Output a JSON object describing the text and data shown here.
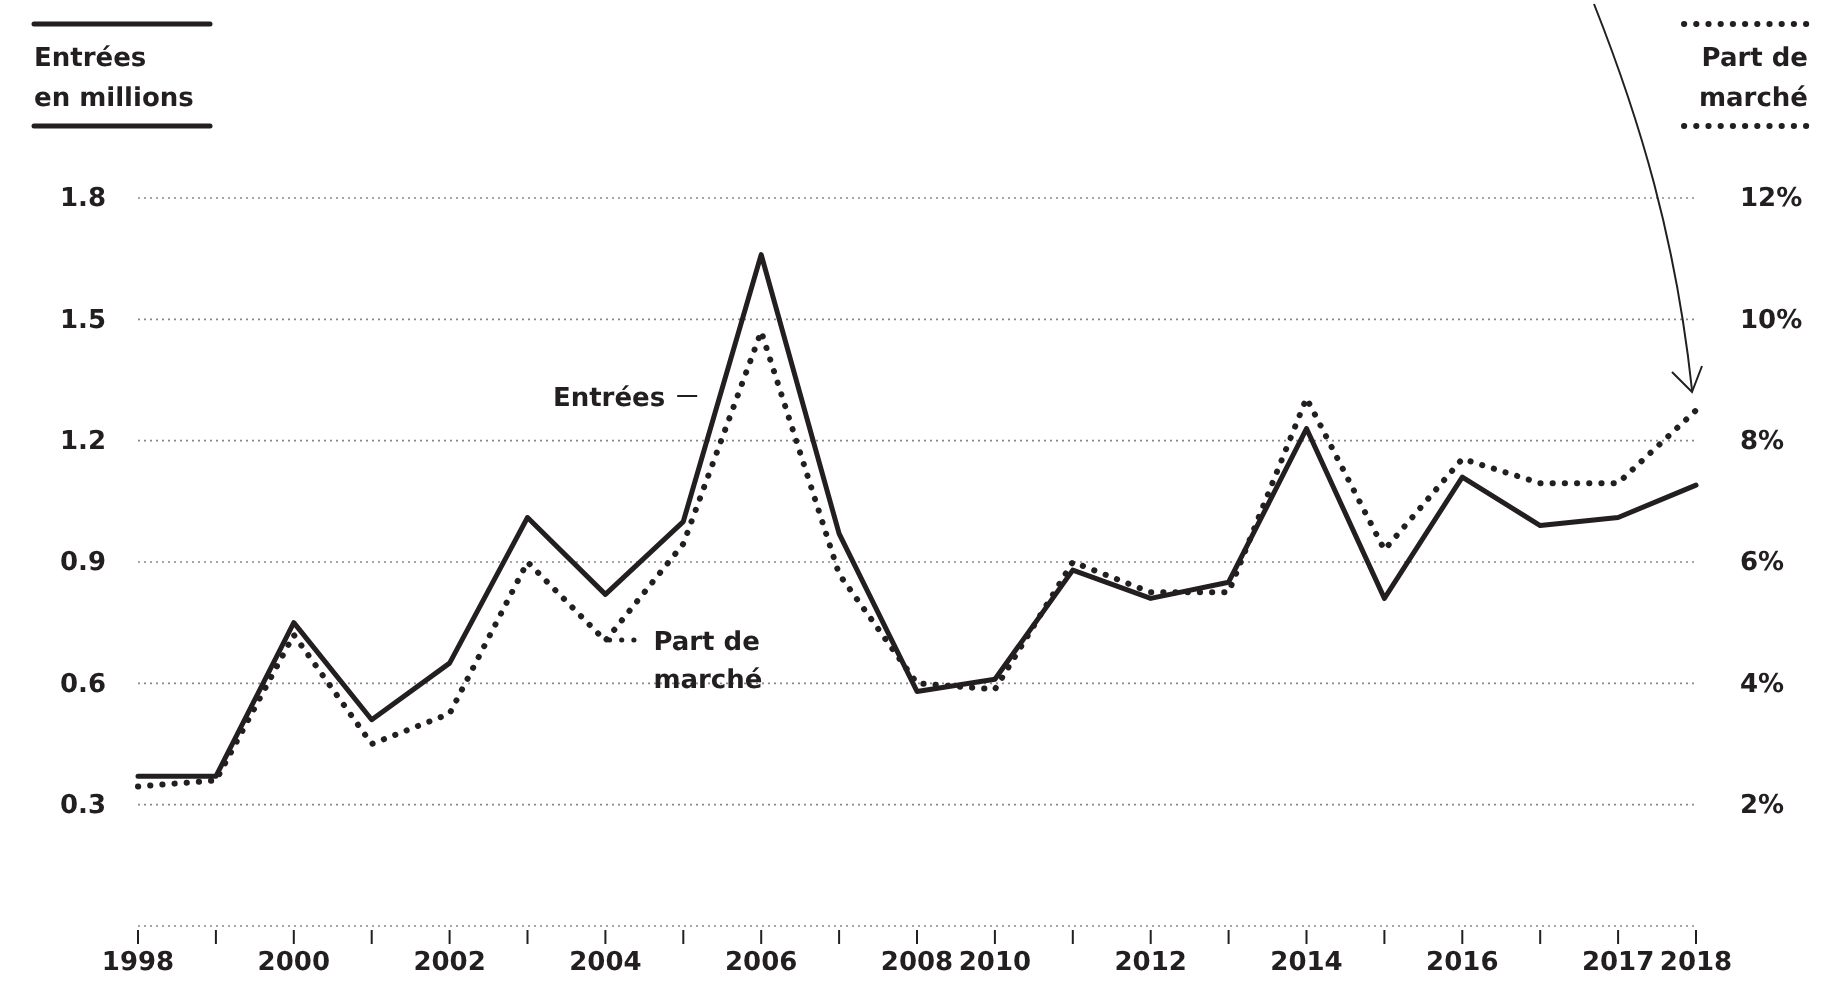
{
  "chart_data": {
    "type": "line",
    "ylabel": "Entrées en millions",
    "y2label": "Part de marché",
    "categories": [
      "1998",
      null,
      "2000",
      null,
      "2002",
      null,
      "2004",
      null,
      "2006",
      null,
      "2008",
      "2010",
      null,
      "2012",
      null,
      "2014",
      null,
      "2016",
      null,
      "2017",
      "2018"
    ],
    "ylim": [
      0,
      1.8
    ],
    "yticks": [
      {
        "value": 0,
        "label": null
      },
      0.3,
      0.6,
      0.9,
      1.2,
      1.5,
      1.8
    ],
    "y2lim": [
      0,
      12
    ],
    "y2ticks": [
      {
        "value": 0,
        "label": null
      },
      {
        "value": 2,
        "label": "2%"
      },
      {
        "value": 4,
        "label": "4%"
      },
      {
        "value": 6,
        "label": "6%"
      },
      {
        "value": 8,
        "label": "8%"
      },
      {
        "value": 10,
        "label": "10%"
      },
      {
        "value": 12,
        "label": "12%"
      }
    ],
    "grid": "y",
    "marker": "none",
    "series": [
      {
        "name": "Entrées",
        "color": "#231f20",
        "line_style": "solid",
        "values": [
          0.37,
          0.37,
          0.75,
          0.51,
          0.65,
          1.01,
          0.82,
          1.0,
          1.66,
          0.97,
          0.58,
          0.61,
          0.88,
          0.81,
          0.85,
          1.23,
          0.81,
          1.11,
          0.99,
          1.01,
          1.09
        ]
      },
      {
        "name": "Part de marché",
        "color": "#231f20",
        "line_style": "dotted",
        "axis": "y2",
        "values": [
          2.3,
          2.4,
          4.8,
          3.0,
          3.5,
          6.0,
          4.7,
          6.3,
          9.8,
          5.8,
          4.0,
          3.9,
          6.0,
          5.5,
          5.5,
          8.7,
          6.2,
          7.7,
          7.3,
          7.3,
          8.5
        ]
      }
    ]
  }
}
